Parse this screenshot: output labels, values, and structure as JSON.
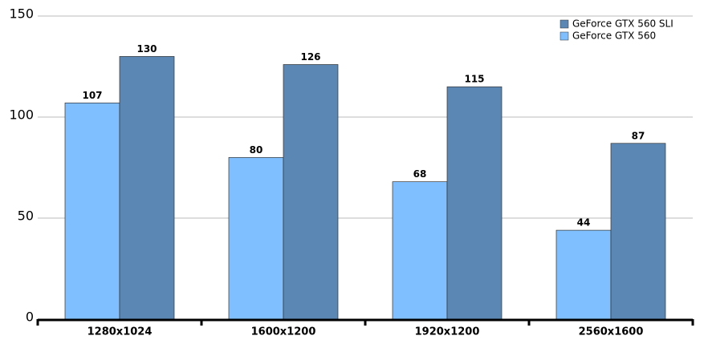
{
  "chart_data": {
    "type": "bar",
    "categories": [
      "1280x1024",
      "1600x1200",
      "1920x1200",
      "2560x1600"
    ],
    "series": [
      {
        "name": "GeForce GTX 560",
        "color": "#80bfff",
        "values": [
          107,
          80,
          68,
          44
        ]
      },
      {
        "name": "GeForce GTX 560 SLI",
        "color": "#5b87b4",
        "values": [
          130,
          126,
          115,
          87
        ]
      }
    ],
    "ylim": [
      0,
      150
    ],
    "yticks": [
      0,
      50,
      100,
      150
    ],
    "grid": true,
    "legend": "top-right"
  }
}
